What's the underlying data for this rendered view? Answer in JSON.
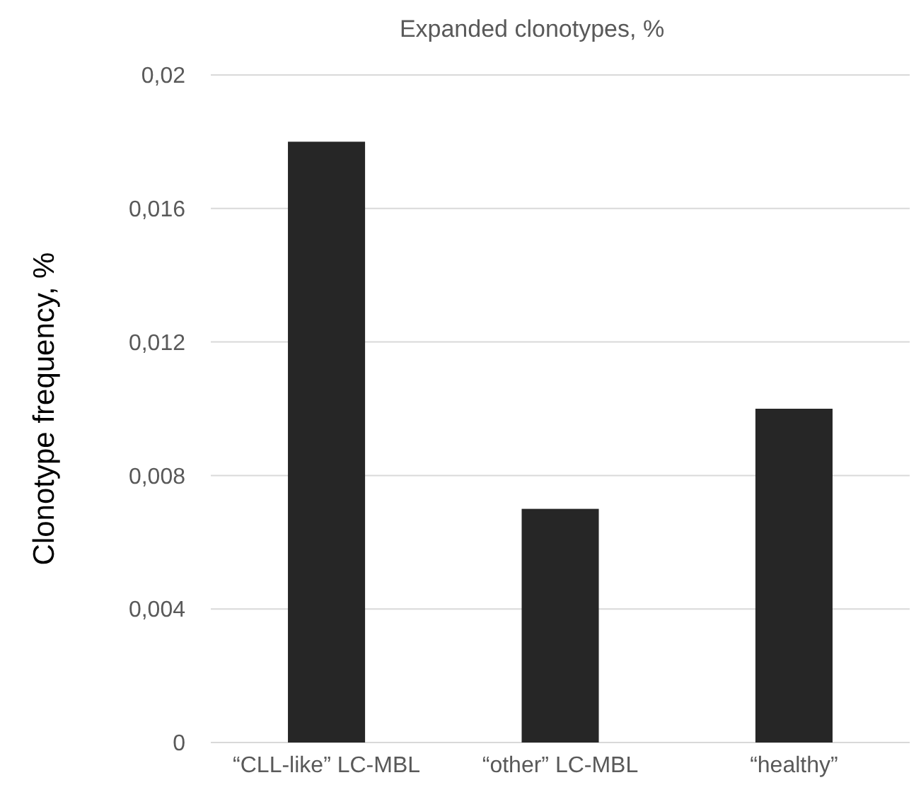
{
  "chart_data": {
    "type": "bar",
    "title": "Expanded clonotypes, %",
    "ylabel": "Clonotype frequency, %",
    "categories": [
      "“CLL-like” LC-MBL",
      "“other” LC-MBL",
      "“healthy”"
    ],
    "values": [
      0.018,
      0.007,
      0.01
    ],
    "color": "#262626",
    "ylim": [
      0,
      0.02
    ],
    "yticks": [
      0,
      {
        "value": 0.004,
        "label": "0,004"
      },
      {
        "value": 0.008,
        "label": "0,008"
      },
      {
        "value": 0.012,
        "label": "0,012"
      },
      {
        "value": 0.016,
        "label": "0,016"
      },
      {
        "value": 0.02,
        "label": "0,02"
      }
    ],
    "grid": true
  }
}
